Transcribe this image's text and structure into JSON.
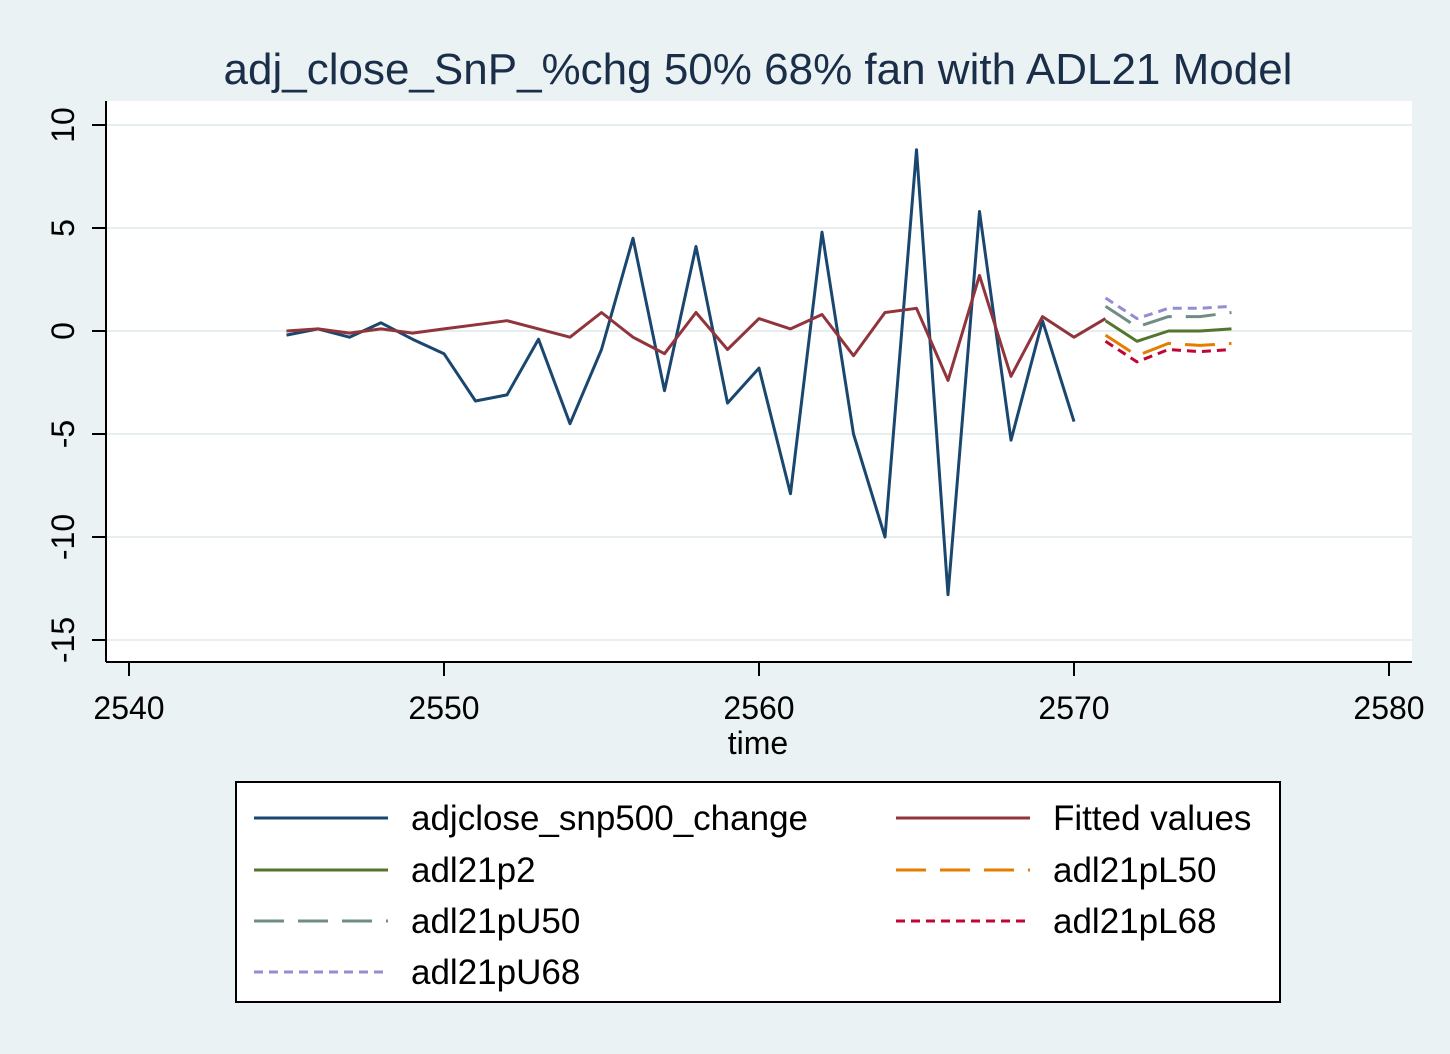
{
  "chart_data": {
    "type": "line",
    "title": "adj_close_SnP_%chg 50% 68% fan with ADL21 Model",
    "xlabel": "time",
    "ylabel": "",
    "xlim": [
      2539,
      2581
    ],
    "ylim": [
      -16,
      11
    ],
    "xticks": [
      2540,
      2550,
      2560,
      2570,
      2580
    ],
    "yticks": [
      10,
      5,
      0,
      -5,
      -10,
      -15
    ],
    "grid": true,
    "legend_position": "bottom",
    "series": [
      {
        "name": "adjclose_snp500_change",
        "color": "#1a476f",
        "dash": "solid",
        "x": [
          2545,
          2546,
          2547,
          2548,
          2549,
          2550,
          2551,
          2552,
          2553,
          2554,
          2555,
          2556,
          2557,
          2558,
          2559,
          2560,
          2561,
          2562,
          2563,
          2564,
          2565,
          2566,
          2567,
          2568,
          2569,
          2570
        ],
        "y": [
          -0.2,
          0.1,
          -0.3,
          0.4,
          -0.4,
          -1.1,
          -3.4,
          -3.1,
          -0.4,
          -4.5,
          -0.9,
          4.5,
          -2.9,
          4.1,
          -3.5,
          -1.8,
          -7.9,
          4.8,
          -5.0,
          -10.0,
          8.8,
          -12.8,
          5.8,
          -5.3,
          0.5,
          -4.4
        ]
      },
      {
        "name": "Fitted values",
        "color": "#90353b",
        "dash": "solid",
        "x": [
          2545,
          2546,
          2547,
          2548,
          2549,
          2550,
          2551,
          2552,
          2553,
          2554,
          2555,
          2556,
          2557,
          2558,
          2559,
          2560,
          2561,
          2562,
          2563,
          2564,
          2565,
          2566,
          2567,
          2568,
          2569,
          2570,
          2571
        ],
        "y": [
          0.0,
          0.1,
          -0.1,
          0.1,
          -0.1,
          0.1,
          0.3,
          0.5,
          0.1,
          -0.3,
          0.9,
          -0.3,
          -1.1,
          0.9,
          -0.9,
          0.6,
          0.1,
          0.8,
          -1.2,
          0.9,
          1.1,
          -2.4,
          2.7,
          -2.2,
          0.7,
          -0.3,
          0.6
        ]
      },
      {
        "name": "adl21p2",
        "color": "#55752f",
        "dash": "solid",
        "x": [
          2571,
          2572,
          2573,
          2574,
          2575
        ],
        "y": [
          0.5,
          -0.5,
          0.0,
          0.0,
          0.1
        ]
      },
      {
        "name": "adl21pL50",
        "color": "#e37e00",
        "dash": "long",
        "x": [
          2571,
          2572,
          2573,
          2574,
          2575
        ],
        "y": [
          -0.2,
          -1.2,
          -0.6,
          -0.7,
          -0.6
        ]
      },
      {
        "name": "adl21pU50",
        "color": "#6e8e84",
        "dash": "long",
        "x": [
          2571,
          2572,
          2573,
          2574,
          2575
        ],
        "y": [
          1.2,
          0.2,
          0.7,
          0.7,
          0.9
        ]
      },
      {
        "name": "adl21pL68",
        "color": "#c10534",
        "dash": "short",
        "x": [
          2571,
          2572,
          2573,
          2574,
          2575
        ],
        "y": [
          -0.5,
          -1.5,
          -0.9,
          -1.0,
          -0.9
        ]
      },
      {
        "name": "adl21pU68",
        "color": "#938dd2",
        "dash": "short",
        "x": [
          2571,
          2572,
          2573,
          2574,
          2575
        ],
        "y": [
          1.6,
          0.6,
          1.1,
          1.1,
          1.2
        ]
      }
    ]
  }
}
